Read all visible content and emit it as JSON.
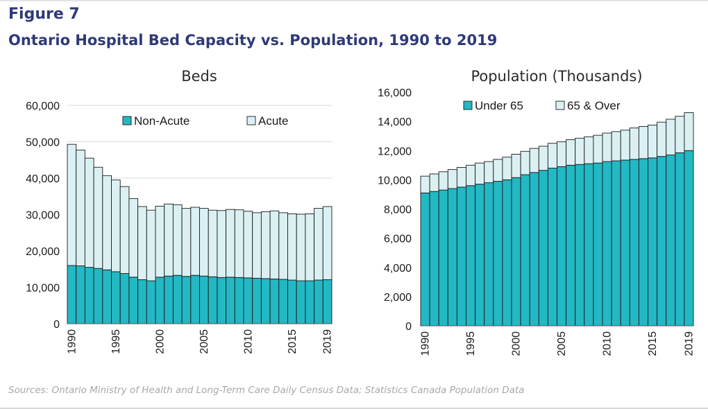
{
  "figure_label": "Figure 7",
  "figure_title": "Ontario Hospital Bed Capacity vs. Population, 1990 to 2019",
  "source": "Sources: Ontario Ministry of Health and Long-Term Care Daily Census Data; Statistics Canada Population Data",
  "colors": {
    "primary": "#22b8c4",
    "light": "#dbf0f3",
    "stroke": "#1b1b1b",
    "grid": "#d9d9d9",
    "title": "#2e3a78"
  },
  "chart_data": [
    {
      "type": "bar",
      "stacked": true,
      "title": "Beds",
      "x": [
        1990,
        1991,
        1992,
        1993,
        1994,
        1995,
        1996,
        1997,
        1998,
        1999,
        2000,
        2001,
        2002,
        2003,
        2004,
        2005,
        2006,
        2007,
        2008,
        2009,
        2010,
        2011,
        2012,
        2013,
        2014,
        2015,
        2016,
        2017,
        2018,
        2019
      ],
      "x_tick_labels": [
        "1990",
        "1995",
        "2000",
        "2005",
        "2010",
        "2015",
        "2019"
      ],
      "ylim": [
        0,
        60000
      ],
      "y_tick_labels": [
        "0",
        "10,000",
        "20,000",
        "30,000",
        "40,000",
        "50,000",
        "60,000"
      ],
      "grid": true,
      "legend_position": "top",
      "series": [
        {
          "name": "Non-Acute",
          "color": "#22b8c4",
          "values": [
            16000,
            15900,
            15500,
            15200,
            14800,
            14300,
            13800,
            12800,
            12100,
            11800,
            12800,
            13100,
            13300,
            13000,
            13300,
            13100,
            12900,
            12700,
            12800,
            12700,
            12600,
            12500,
            12400,
            12300,
            12200,
            12000,
            11800,
            11800,
            12000,
            12100
          ]
        },
        {
          "name": "Acute",
          "color": "#dbf0f3",
          "values": [
            33300,
            31800,
            30000,
            27800,
            25900,
            25200,
            23900,
            21600,
            20100,
            19400,
            19500,
            19800,
            19400,
            18700,
            18700,
            18600,
            18300,
            18400,
            18600,
            18600,
            18300,
            18000,
            18400,
            18700,
            18300,
            18200,
            18300,
            18400,
            19700,
            20100
          ]
        }
      ]
    },
    {
      "type": "bar",
      "stacked": true,
      "title": "Population (Thousands)",
      "x": [
        1990,
        1991,
        1992,
        1993,
        1994,
        1995,
        1996,
        1997,
        1998,
        1999,
        2000,
        2001,
        2002,
        2003,
        2004,
        2005,
        2006,
        2007,
        2008,
        2009,
        2010,
        2011,
        2012,
        2013,
        2014,
        2015,
        2016,
        2017,
        2018,
        2019
      ],
      "x_tick_labels": [
        "1990",
        "1995",
        "2000",
        "2005",
        "2010",
        "2015",
        "2019"
      ],
      "ylim": [
        0,
        16000
      ],
      "y_tick_labels": [
        "0",
        "2,000",
        "4,000",
        "6,000",
        "8,000",
        "10,000",
        "12,000",
        "14,000",
        "16,000"
      ],
      "grid": false,
      "legend_position": "top",
      "series": [
        {
          "name": "Under 65",
          "color": "#22b8c4",
          "values": [
            9100,
            9200,
            9300,
            9400,
            9500,
            9600,
            9700,
            9800,
            9900,
            10000,
            10150,
            10350,
            10500,
            10650,
            10800,
            10900,
            11000,
            11050,
            11100,
            11150,
            11250,
            11300,
            11350,
            11400,
            11450,
            11500,
            11600,
            11700,
            11850,
            12000
          ]
        },
        {
          "name": "65 & Over",
          "color": "#dbf0f3",
          "values": [
            1150,
            1200,
            1250,
            1300,
            1350,
            1400,
            1450,
            1450,
            1500,
            1550,
            1600,
            1600,
            1650,
            1650,
            1700,
            1700,
            1750,
            1800,
            1850,
            1900,
            1950,
            2000,
            2050,
            2150,
            2200,
            2250,
            2350,
            2450,
            2500,
            2600
          ]
        }
      ]
    }
  ]
}
